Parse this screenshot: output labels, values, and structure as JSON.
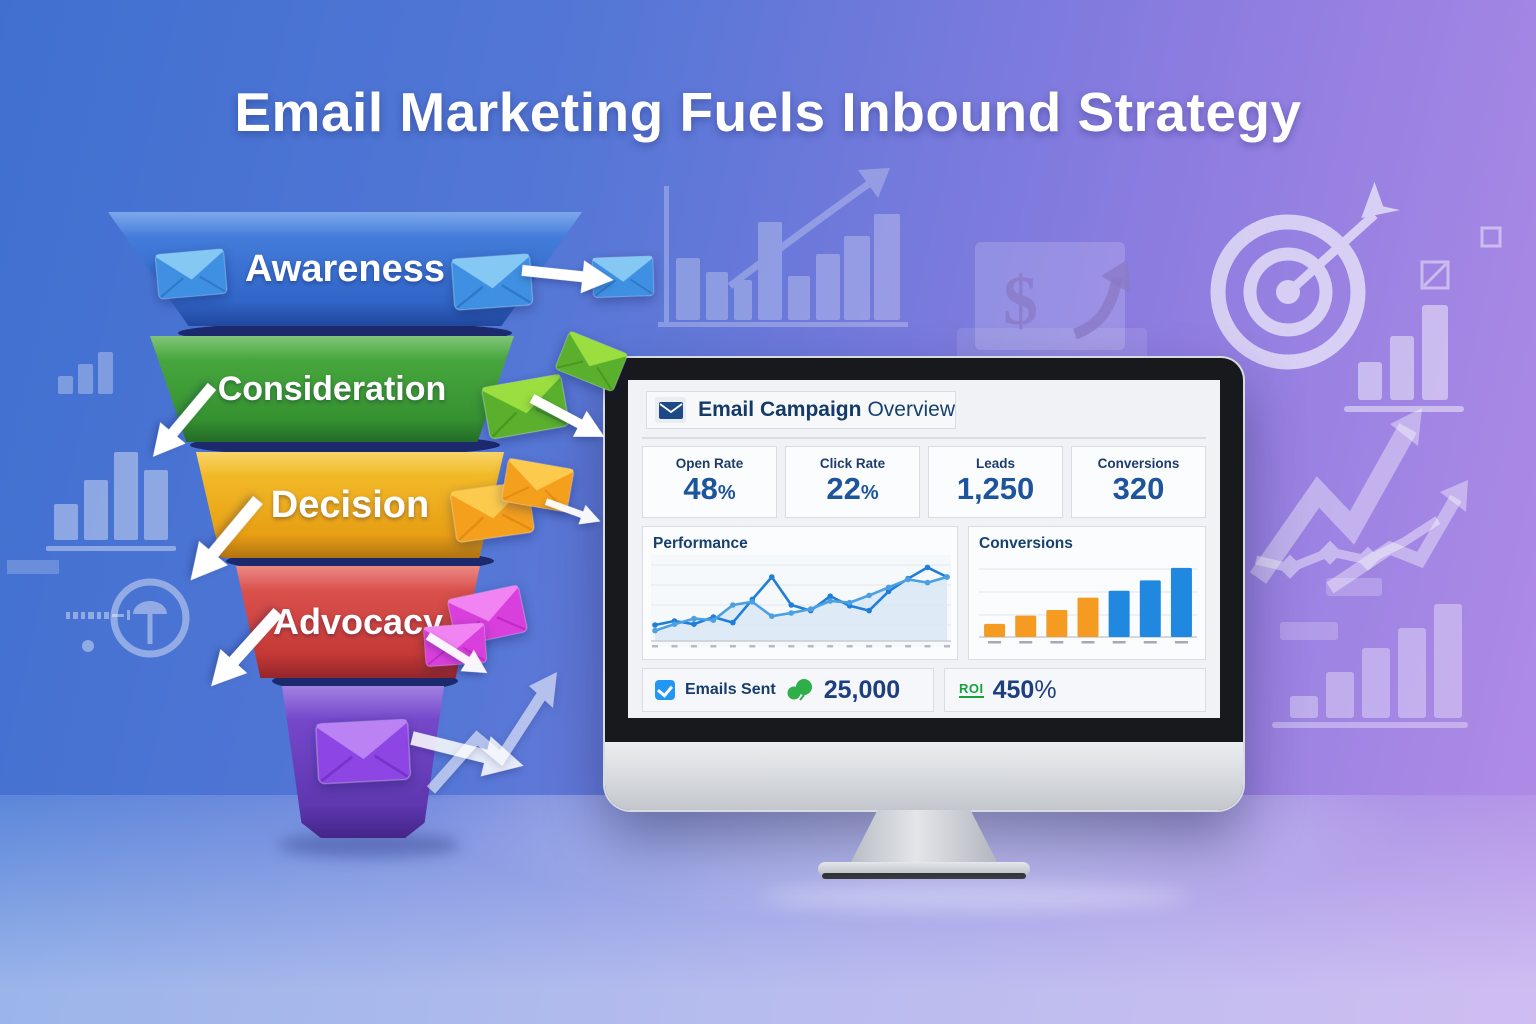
{
  "title": "Email Marketing Fuels Inbound Strategy",
  "funnel": {
    "stages": [
      {
        "label": "Awareness",
        "color_top": "#4b85e2",
        "color_bottom": "#2a5dc0"
      },
      {
        "label": "Consideration",
        "color_top": "#4fae44",
        "color_bottom": "#2e8a2a"
      },
      {
        "label": "Decision",
        "color_top": "#f6c42f",
        "color_bottom": "#e3940c"
      },
      {
        "label": "Advocacy",
        "color_top": "#e25a55",
        "color_bottom": "#bd302d"
      },
      {
        "label": "",
        "color_top": "#7e4fd6",
        "color_bottom": "#5630a4"
      }
    ]
  },
  "dashboard": {
    "header": {
      "icon": "envelope-icon",
      "title_bold": "Email Campaign",
      "title_regular": "Overview"
    },
    "stats": [
      {
        "label": "Open Rate",
        "value": "48",
        "suffix": "%"
      },
      {
        "label": "Click Rate",
        "value": "22",
        "suffix": "%"
      },
      {
        "label": "Leads",
        "value": "1,250",
        "suffix": ""
      },
      {
        "label": "Conversions",
        "value": "320",
        "suffix": ""
      }
    ],
    "footer": {
      "emails_sent_icon": "checkbox-icon",
      "emails_sent_label": "Emails Sent",
      "emails_sent_value_icon": "balloons-icon",
      "emails_sent_value": "25,000",
      "roi_label": "ROI",
      "roi_value": "450",
      "roi_suffix": "%"
    }
  },
  "chart_data": [
    {
      "type": "line",
      "title": "Performance",
      "x": [
        1,
        2,
        3,
        4,
        5,
        6,
        7,
        8,
        9,
        10,
        11,
        12,
        13,
        14,
        15,
        16
      ],
      "series": [
        {
          "name": "line-1",
          "values": [
            20,
            25,
            21,
            30,
            23,
            52,
            80,
            45,
            38,
            56,
            44,
            38,
            62,
            78,
            92,
            80
          ]
        },
        {
          "name": "line-2",
          "values": [
            13,
            21,
            28,
            26,
            45,
            49,
            31,
            35,
            40,
            50,
            48,
            57,
            67,
            77,
            73,
            80
          ]
        }
      ],
      "ylim": [
        0,
        100
      ],
      "grid": true,
      "legend": "none",
      "colors": [
        "#1f7fd6",
        "#4aa0e2"
      ],
      "area_fill": "#d9e7f5"
    },
    {
      "type": "bar",
      "title": "Conversions",
      "categories": [
        "",
        "",
        "",
        "",
        "",
        "",
        ""
      ],
      "values": [
        19,
        31,
        39,
        57,
        67,
        82,
        100
      ],
      "ylim": [
        0,
        110
      ],
      "grid": true,
      "legend": "none",
      "bar_colors": [
        "#f59b21",
        "#f59b21",
        "#f59b21",
        "#f59b21",
        "#2088df",
        "#2088df",
        "#2088df"
      ]
    }
  ],
  "colors": {
    "background_left_blue": "#3f70d0",
    "background_right_purple": "#b28ce6",
    "navy_text": "#16406f",
    "stat_value_blue": "#1e549c",
    "roi_green": "#18a23c",
    "checkbox_blue": "#2196f3",
    "bar_orange": "#f59b21",
    "bar_blue": "#2088df"
  }
}
